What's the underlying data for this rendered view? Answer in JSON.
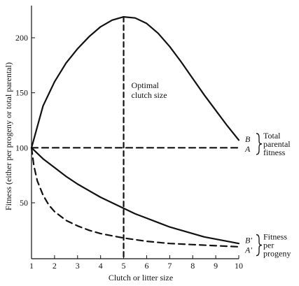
{
  "chart_data": {
    "type": "line",
    "title": "",
    "xlabel": "Clutch or litter size",
    "ylabel": "Fitness (either per progeny or total parental)",
    "xlim": [
      1,
      10
    ],
    "ylim": [
      0,
      230
    ],
    "xticks": [
      1,
      2,
      3,
      4,
      5,
      6,
      7,
      8,
      9,
      10
    ],
    "yticks": [
      50,
      100,
      150,
      200
    ],
    "grid": false,
    "series": [
      {
        "name": "B",
        "style": "solid",
        "x": [
          1,
          1.5,
          2,
          2.5,
          3,
          3.5,
          4,
          4.5,
          5,
          5.5,
          6,
          6.5,
          7,
          7.5,
          8,
          8.5,
          9,
          9.5,
          10
        ],
        "values": [
          100,
          138,
          160,
          177,
          190,
          201,
          210,
          216,
          219,
          218,
          213,
          204,
          192,
          178,
          163,
          148,
          134,
          120,
          107
        ]
      },
      {
        "name": "A",
        "style": "dashed",
        "x": [
          1,
          10
        ],
        "values": [
          100,
          100
        ]
      },
      {
        "name": "B'",
        "style": "solid",
        "x": [
          1,
          1.5,
          2,
          2.5,
          3,
          3.5,
          4,
          4.5,
          5,
          5.5,
          6,
          6.5,
          7,
          7.5,
          8,
          8.5,
          9,
          9.5,
          10
        ],
        "values": [
          100,
          90,
          82,
          74,
          67,
          61,
          55,
          50,
          45,
          40,
          36,
          32,
          28,
          25,
          22,
          19,
          17,
          15,
          13
        ]
      },
      {
        "name": "A'",
        "style": "dashed",
        "x": [
          1,
          1.1,
          1.25,
          1.5,
          1.75,
          2,
          2.5,
          3,
          3.5,
          4,
          4.5,
          5,
          6,
          7,
          8,
          9,
          10
        ],
        "values": [
          100,
          84,
          70,
          57,
          48,
          42,
          34,
          29,
          25,
          22,
          20,
          18,
          15,
          13,
          12,
          11,
          10
        ]
      }
    ],
    "optimum": {
      "x": 5,
      "label_lines": [
        "Optimal",
        "clutch size"
      ]
    },
    "group_labels": [
      {
        "series": [
          "B",
          "A"
        ],
        "lines": [
          "Total",
          "parental",
          "fitness"
        ]
      },
      {
        "series": [
          "B'",
          "A'"
        ],
        "lines": [
          "Fitness",
          "per",
          "progeny"
        ]
      }
    ]
  }
}
